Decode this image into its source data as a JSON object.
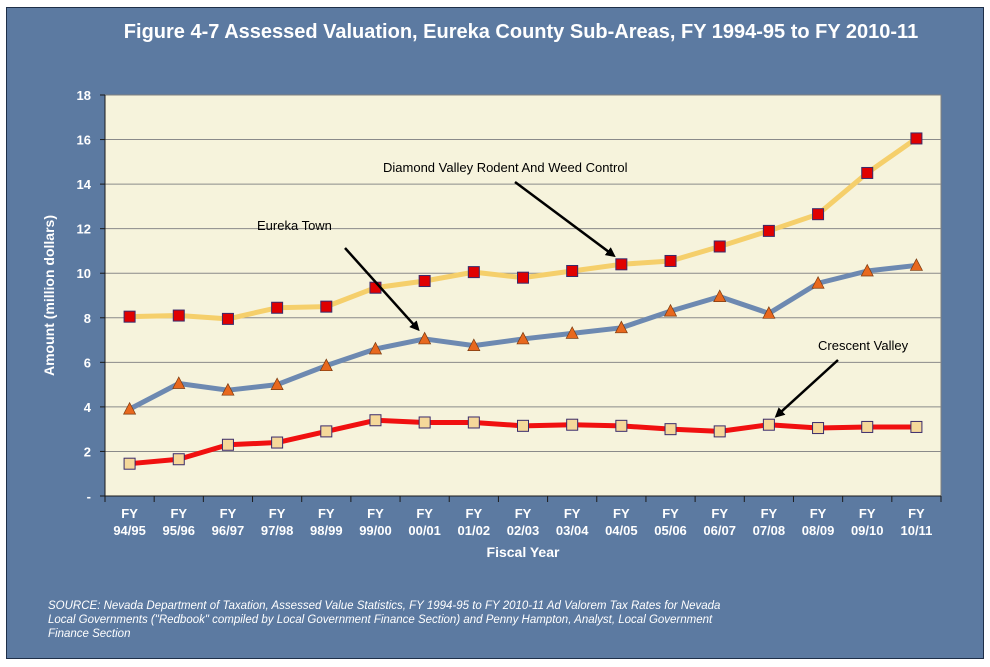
{
  "title": "Figure 4-7 Assessed Valuation, Eureka County Sub-Areas, FY 1994-95 to FY 2010-11",
  "source": "SOURCE: Nevada Department of Taxation, Assessed Value Statistics, FY 1994-95 to FY 2010-11  Ad Valorem Tax Rates for Nevada Local Governments (\"Redbook\" compiled by Local Government Finance Section) and Penny Hampton, Analyst, Local Government Finance Section",
  "colors": {
    "frame": "#5c7aa1",
    "plot_background": "#f6f3dc",
    "diamond_valley_line": "#f5cf6b",
    "diamond_valley_marker": "#e00000",
    "eureka_town_line": "#6d89b1",
    "eureka_town_marker": "#e8681e",
    "crescent_valley_line": "#f01010",
    "crescent_valley_marker": "#f5d89a"
  },
  "chart_data": {
    "type": "line",
    "xlabel": "Fiscal Year",
    "ylabel": "Amount (million dollars)",
    "ylim": [
      0,
      18
    ],
    "y_ticks": [
      {
        "value": 0,
        "label": "-"
      },
      {
        "value": 2,
        "label": "2"
      },
      {
        "value": 4,
        "label": "4"
      },
      {
        "value": 6,
        "label": "6"
      },
      {
        "value": 8,
        "label": "8"
      },
      {
        "value": 10,
        "label": "10"
      },
      {
        "value": 12,
        "label": "12"
      },
      {
        "value": 14,
        "label": "14"
      },
      {
        "value": 16,
        "label": "16"
      },
      {
        "value": 18,
        "label": "18"
      }
    ],
    "grid": true,
    "legend": "none",
    "categories": [
      {
        "line1": "FY",
        "line2": "94/95"
      },
      {
        "line1": "FY",
        "line2": "95/96"
      },
      {
        "line1": "FY",
        "line2": "96/97"
      },
      {
        "line1": "FY",
        "line2": "97/98"
      },
      {
        "line1": "FY",
        "line2": "98/99"
      },
      {
        "line1": "FY",
        "line2": "99/00"
      },
      {
        "line1": "FY",
        "line2": "00/01"
      },
      {
        "line1": "FY",
        "line2": "01/02"
      },
      {
        "line1": "FY",
        "line2": "02/03"
      },
      {
        "line1": "FY",
        "line2": "03/04"
      },
      {
        "line1": "FY",
        "line2": "04/05"
      },
      {
        "line1": "FY",
        "line2": "05/06"
      },
      {
        "line1": "FY",
        "line2": "06/07"
      },
      {
        "line1": "FY",
        "line2": "07/08"
      },
      {
        "line1": "FY",
        "line2": "08/09"
      },
      {
        "line1": "FY",
        "line2": "09/10"
      },
      {
        "line1": "FY",
        "line2": "10/11"
      }
    ],
    "series": [
      {
        "name": "Diamond Valley Rodent And Weed Control",
        "marker": "square",
        "line_color": "#f5cf6b",
        "marker_color": "#e00000",
        "values": [
          8.05,
          8.1,
          7.95,
          8.45,
          8.5,
          9.35,
          9.65,
          10.05,
          9.8,
          10.1,
          10.4,
          10.55,
          11.2,
          11.9,
          12.65,
          14.5,
          16.05
        ]
      },
      {
        "name": "Eureka Town",
        "marker": "triangle",
        "line_color": "#6d89b1",
        "marker_color": "#e8681e",
        "values": [
          3.9,
          5.05,
          4.75,
          5.0,
          5.85,
          6.6,
          7.05,
          6.75,
          7.05,
          7.3,
          7.55,
          8.3,
          8.95,
          8.2,
          9.55,
          10.1,
          10.35
        ]
      },
      {
        "name": "Crescent Valley",
        "marker": "square",
        "line_color": "#f01010",
        "marker_color": "#f5d89a",
        "values": [
          1.45,
          1.65,
          2.3,
          2.4,
          2.9,
          3.4,
          3.3,
          3.3,
          3.15,
          3.2,
          3.15,
          3.0,
          2.9,
          3.2,
          3.05,
          3.1,
          3.1
        ]
      }
    ],
    "annotations": [
      {
        "text": "Diamond Valley Rodent And Weed Control",
        "series": 0,
        "points_to": "FY 04/05"
      },
      {
        "text": "Eureka Town",
        "series": 1,
        "points_to": "FY 00/01"
      },
      {
        "text": "Crescent Valley",
        "series": 2,
        "points_to": "FY 07/08"
      }
    ]
  }
}
